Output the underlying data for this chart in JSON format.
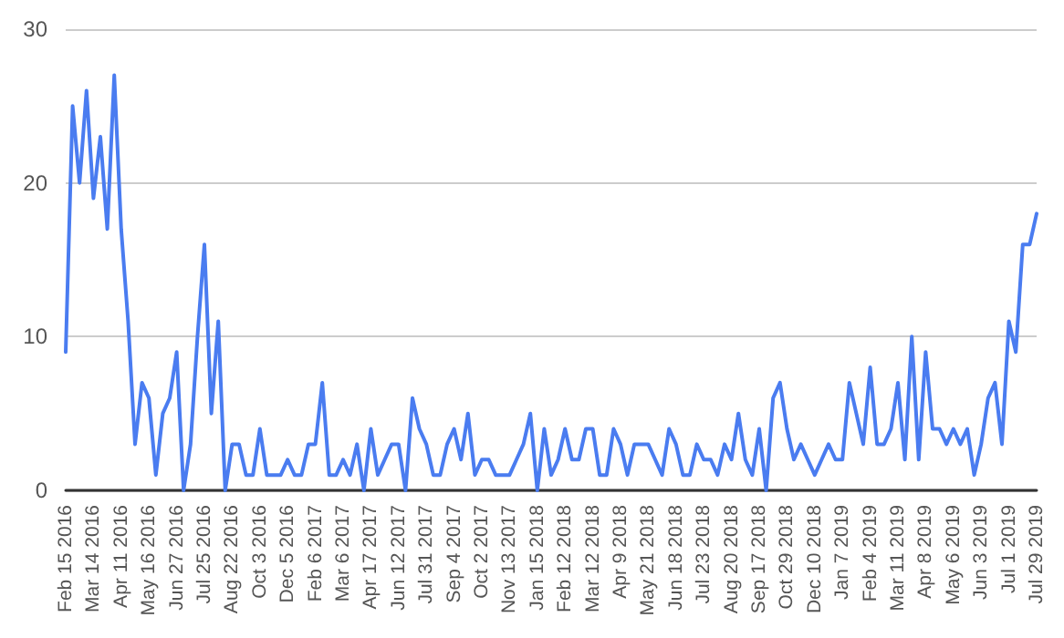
{
  "chart_data": {
    "type": "line",
    "categories": [
      "Feb 15 2016",
      null,
      null,
      null,
      "Mar 14 2016",
      null,
      null,
      null,
      "Apr 11 2016",
      null,
      null,
      null,
      "May 16 2016",
      null,
      null,
      null,
      "Jun 27 2016",
      null,
      null,
      null,
      "Jul 25 2016",
      null,
      null,
      null,
      "Aug 22 2016",
      null,
      null,
      null,
      "Oct 3 2016",
      null,
      null,
      null,
      "Dec 5 2016",
      null,
      null,
      null,
      "Feb 6 2017",
      null,
      null,
      null,
      "Mar 6 2017",
      null,
      null,
      null,
      "Apr 17 2017",
      null,
      null,
      null,
      "Jun 12 2017",
      null,
      null,
      null,
      "Jul 31 2017",
      null,
      null,
      null,
      "Sep 4 2017",
      null,
      null,
      null,
      "Oct 2 2017",
      null,
      null,
      null,
      "Nov 13 2017",
      null,
      null,
      null,
      "Jan 15 2018",
      null,
      null,
      null,
      "Feb 12 2018",
      null,
      null,
      null,
      "Mar 12 2018",
      null,
      null,
      null,
      "Apr 9 2018",
      null,
      null,
      null,
      "May 21 2018",
      null,
      null,
      null,
      "Jun 18 2018",
      null,
      null,
      null,
      "Jul 23 2018",
      null,
      null,
      null,
      "Aug 20 2018",
      null,
      null,
      null,
      "Sep 17 2018",
      null,
      null,
      null,
      "Oct 29 2018",
      null,
      null,
      null,
      "Dec 10 2018",
      null,
      null,
      null,
      "Jan 7 2019",
      null,
      null,
      null,
      "Feb 4 2019",
      null,
      null,
      null,
      "Mar 11 2019",
      null,
      null,
      null,
      "Apr 8 2019",
      null,
      null,
      null,
      "May 6 2019",
      null,
      null,
      null,
      "Jun 3 2019",
      null,
      null,
      null,
      "Jul 1 2019",
      null,
      null,
      null,
      "Jul 29 2019"
    ],
    "series": [
      {
        "color": "#4a7cf0",
        "values": [
          9,
          25,
          20,
          26,
          19,
          23,
          17,
          27,
          17,
          11,
          3,
          7,
          6,
          1,
          5,
          6,
          9,
          0,
          3,
          10,
          16,
          5,
          11,
          0,
          3,
          3,
          1,
          1,
          4,
          1,
          1,
          1,
          2,
          1,
          1,
          3,
          3,
          7,
          1,
          1,
          2,
          1,
          3,
          0,
          4,
          1,
          2,
          3,
          3,
          0,
          6,
          4,
          3,
          1,
          1,
          3,
          4,
          2,
          5,
          1,
          2,
          2,
          1,
          1,
          1,
          2,
          3,
          5,
          0,
          4,
          1,
          2,
          4,
          2,
          2,
          4,
          4,
          1,
          1,
          4,
          3,
          1,
          3,
          3,
          3,
          2,
          1,
          4,
          3,
          1,
          1,
          3,
          2,
          2,
          1,
          3,
          2,
          5,
          2,
          1,
          4,
          0,
          6,
          7,
          4,
          2,
          3,
          2,
          1,
          2,
          3,
          2,
          2,
          7,
          5,
          3,
          8,
          3,
          3,
          4,
          7,
          2,
          10,
          2,
          9,
          4,
          4,
          3,
          4,
          3,
          4,
          1,
          3,
          6,
          7,
          3,
          11,
          9,
          16,
          16,
          18
        ]
      }
    ],
    "ylim": [
      0,
      30
    ],
    "yticks": [
      0,
      10,
      20,
      30
    ],
    "grid": "y",
    "marker": "none",
    "line_style": "solid"
  }
}
